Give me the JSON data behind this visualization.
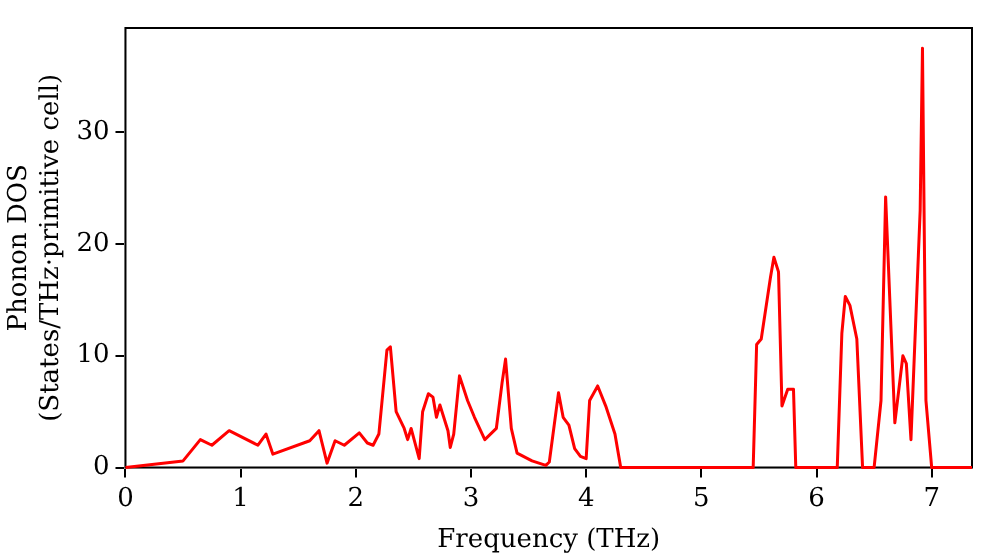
{
  "chart_data": {
    "type": "line",
    "xlabel": "Frequency (THz)",
    "ylabel": "Phonon DOS\n(States/THz·primitive cell)",
    "x": [
      0,
      0.5,
      0.65,
      0.75,
      0.9,
      1.15,
      1.22,
      1.28,
      1.6,
      1.68,
      1.75,
      1.82,
      1.9,
      2.03,
      2.1,
      2.15,
      2.2,
      2.27,
      2.3,
      2.35,
      2.42,
      2.45,
      2.48,
      2.55,
      2.58,
      2.63,
      2.67,
      2.7,
      2.73,
      2.8,
      2.82,
      2.85,
      2.9,
      2.97,
      3.03,
      3.12,
      3.22,
      3.27,
      3.3,
      3.35,
      3.4,
      3.53,
      3.65,
      3.68,
      3.76,
      3.8,
      3.85,
      3.9,
      3.95,
      4.0,
      4.03,
      4.1,
      4.17,
      4.25,
      4.3,
      5.45,
      5.48,
      5.52,
      5.6,
      5.63,
      5.67,
      5.7,
      5.75,
      5.8,
      5.82,
      6.18,
      6.22,
      6.25,
      6.29,
      6.35,
      6.4,
      6.5,
      6.56,
      6.6,
      6.68,
      6.75,
      6.78,
      6.82,
      6.9,
      6.92,
      6.95,
      7.0,
      7.35
    ],
    "series": [
      {
        "color": "#ff0000",
        "values": [
          0,
          0.6,
          2.5,
          2,
          3.3,
          2,
          3,
          1.2,
          2.4,
          3.3,
          0.4,
          2.4,
          2,
          3.1,
          2.2,
          2,
          3,
          10.5,
          10.8,
          5,
          3.5,
          2.5,
          3.5,
          0.8,
          5,
          6.6,
          6.3,
          4.5,
          5.6,
          3.3,
          1.8,
          3,
          8.2,
          6,
          4.5,
          2.5,
          3.5,
          7.6,
          9.7,
          3.5,
          1.3,
          0.6,
          0.2,
          0.5,
          6.7,
          4.5,
          3.8,
          1.7,
          1,
          0.8,
          6,
          7.3,
          5.5,
          3,
          0,
          0,
          11,
          11.5,
          17,
          18.8,
          17.5,
          5.5,
          7,
          7,
          0,
          0,
          12,
          15.3,
          14.5,
          11.5,
          0,
          0,
          6,
          24.2,
          4,
          10,
          9.3,
          2.5,
          23,
          37.5,
          6,
          0,
          0
        ]
      }
    ],
    "xlim": [
      0,
      7.35
    ],
    "ylim": [
      0,
      39.3
    ],
    "xticks": [
      0,
      1,
      2,
      3,
      4,
      5,
      6,
      7
    ],
    "yticks": [
      0,
      10,
      20,
      30
    ],
    "grid": false,
    "legend": false,
    "marker": "none",
    "line_style": "solid"
  }
}
